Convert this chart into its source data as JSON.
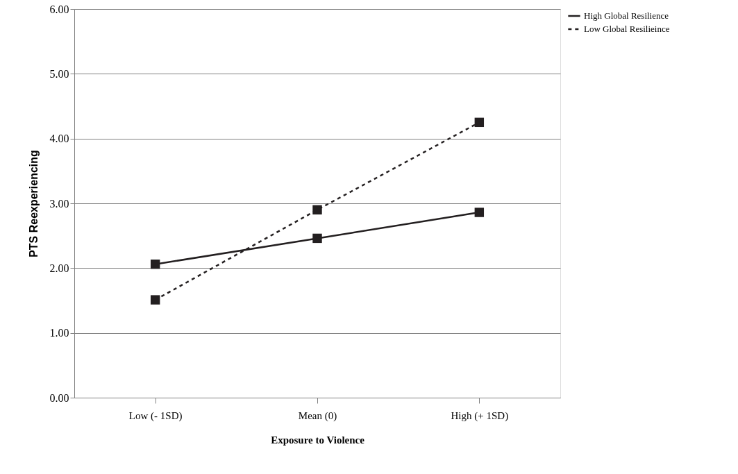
{
  "chart_data": {
    "type": "line",
    "xlabel": "Exposure to Violence",
    "ylabel": "PTS Reexperiencing",
    "categories": [
      "Low (- 1SD)",
      "Mean (0)",
      "High (+ 1SD)"
    ],
    "series": [
      {
        "name": "High Global Resilience",
        "color": "#231f20",
        "line_style": "solid",
        "values": [
          2.06,
          2.46,
          2.86
        ]
      },
      {
        "name": "Low Global Resilieince",
        "color": "#231f20",
        "line_style": "dashed",
        "values": [
          1.51,
          2.9,
          4.25
        ]
      }
    ],
    "ylim": [
      0,
      6
    ],
    "yticks": [
      {
        "value": 0,
        "label": "0.00"
      },
      {
        "value": 1,
        "label": "1.00"
      },
      {
        "value": 2,
        "label": "2.00"
      },
      {
        "value": 3,
        "label": "3.00"
      },
      {
        "value": 4,
        "label": "4.00"
      },
      {
        "value": 5,
        "label": "5.00"
      },
      {
        "value": 6,
        "label": "6.00"
      }
    ],
    "grid": "y",
    "legend": "right",
    "marker": "square"
  }
}
